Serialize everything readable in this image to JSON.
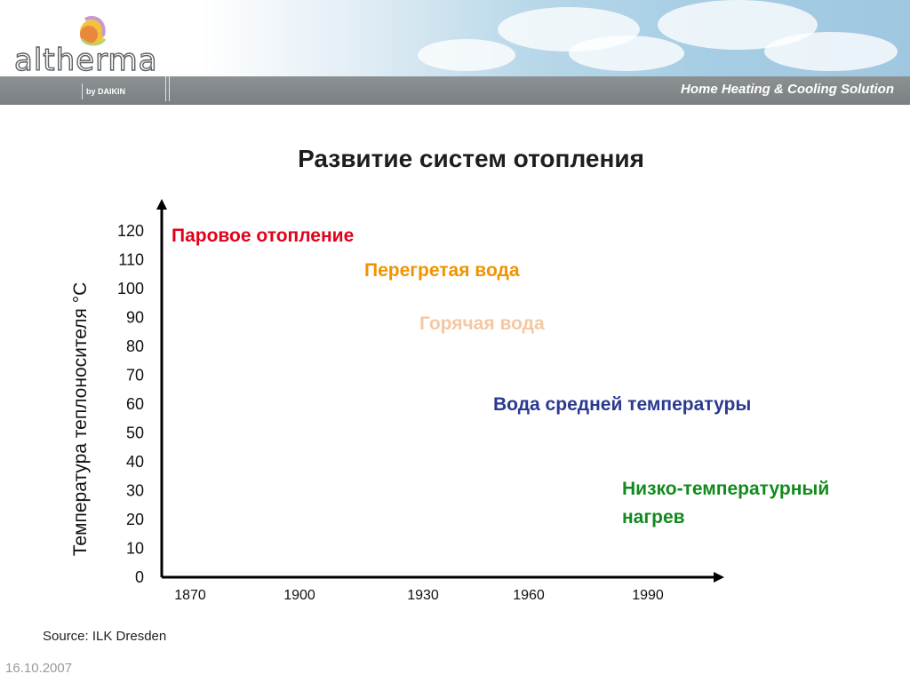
{
  "header": {
    "logo_text": "altherma",
    "logo_sub": "by DAIKIN",
    "tagline": "Home Heating & Cooling Solution"
  },
  "slide": {
    "title": "Развитие систем отопления",
    "source": "Source: ILK Dresden",
    "date": "16.10.2007"
  },
  "colors": {
    "steam": "#e3001b",
    "superheated": "#f29200",
    "hot": "#f5c8a3",
    "medium": "#2b3990",
    "low": "#138a1d",
    "axis": "#000000"
  },
  "chart_data": {
    "type": "scatter",
    "ylabel": "Температура теплоносителя °C",
    "xlabel": "",
    "x_ticks": [
      "1870",
      "1900",
      "1930",
      "1960",
      "1990"
    ],
    "y_ticks": [
      "0",
      "10",
      "20",
      "30",
      "40",
      "50",
      "60",
      "70",
      "80",
      "90",
      "100",
      "110",
      "120"
    ],
    "xlim": [
      1870,
      1990
    ],
    "ylim": [
      0,
      120
    ],
    "annotations": [
      {
        "label": "Паровое отопление",
        "x": 1870,
        "y": 120,
        "color": "#e3001b"
      },
      {
        "label": "Перегретая вода",
        "x": 1920,
        "y": 108,
        "color": "#f29200"
      },
      {
        "label": "Горячая вода",
        "x": 1935,
        "y": 90,
        "color": "#f5c8a3"
      },
      {
        "label": "Вода средней температуры",
        "x": 1955,
        "y": 62,
        "color": "#2b3990"
      },
      {
        "label": "Низко-температурный нагрев",
        "lines": [
          "Низко-температурный",
          "нагрев"
        ],
        "x": 1987,
        "y": 34,
        "color": "#138a1d"
      }
    ]
  }
}
